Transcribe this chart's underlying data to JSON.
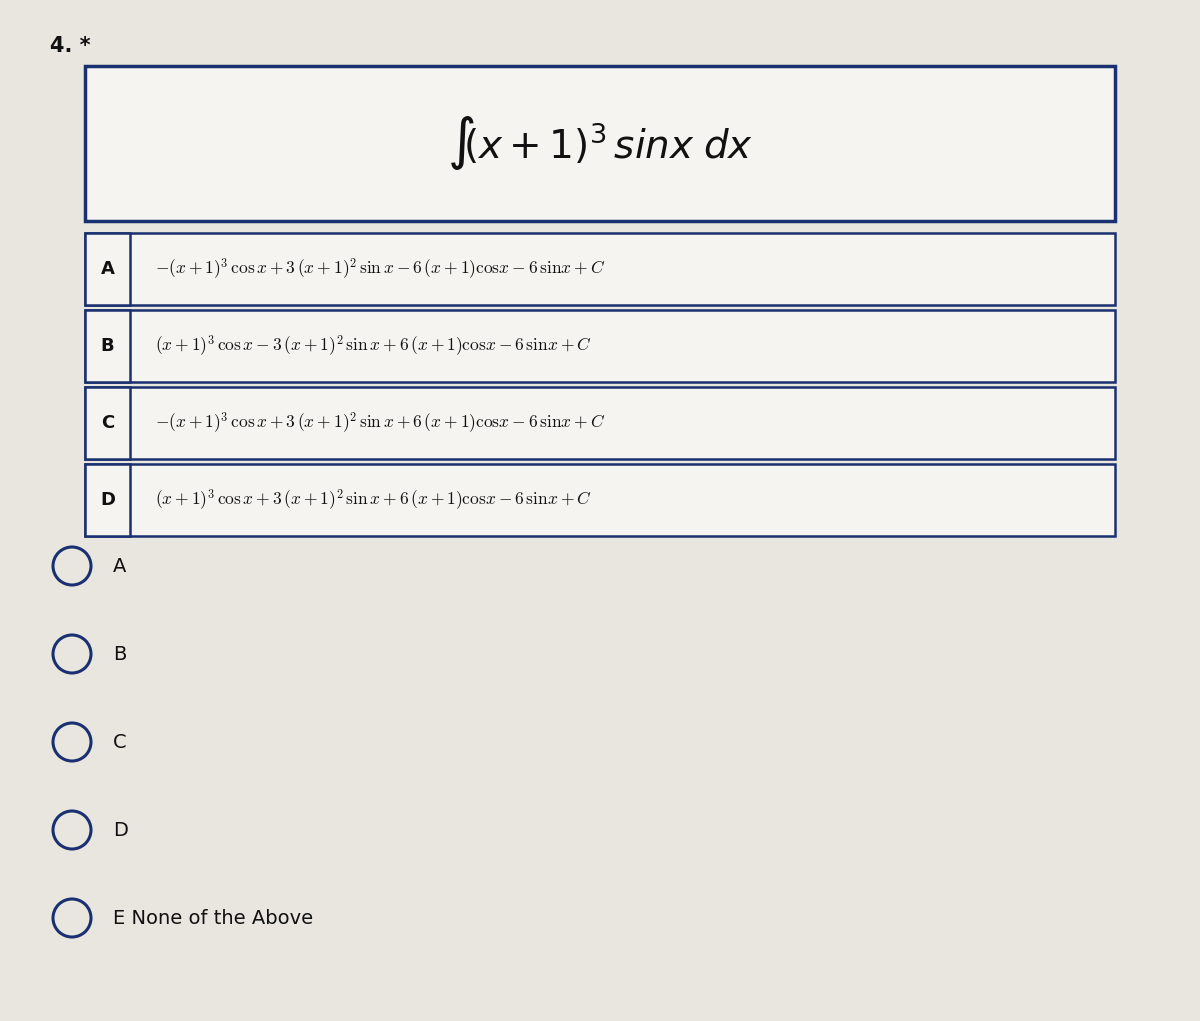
{
  "question_number": "4. *",
  "bg_color": "#e8e6df",
  "box_bg": "#f5f4f0",
  "box_border": "#1a3070",
  "text_color": "#111111",
  "radio_options": [
    "A",
    "B",
    "C",
    "D",
    "E None of the Above"
  ],
  "figwidth": 12.0,
  "figheight": 10.21
}
